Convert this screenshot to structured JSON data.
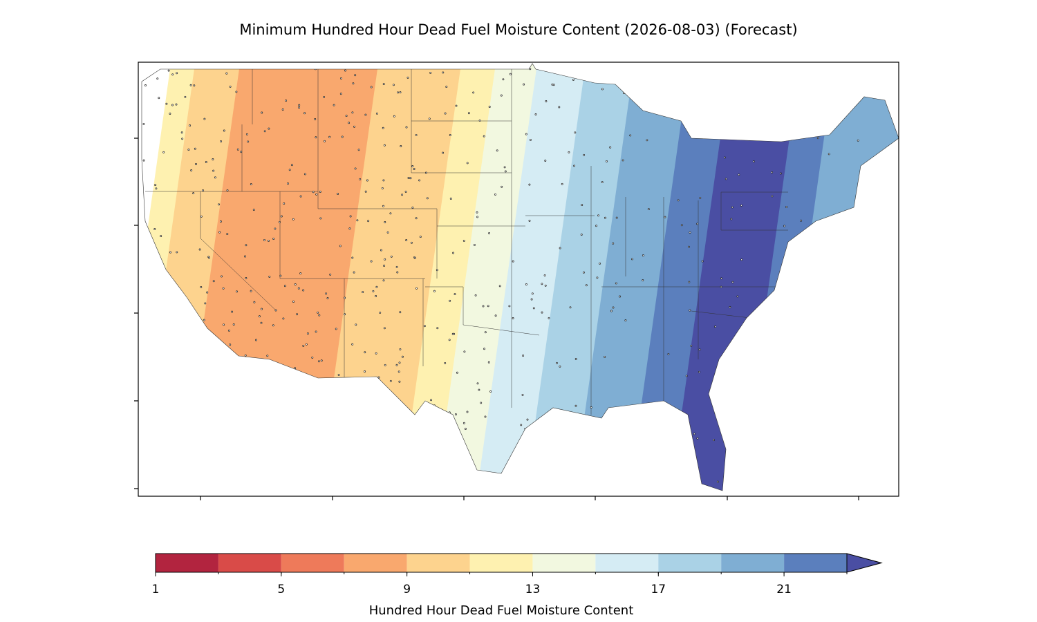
{
  "title": "Minimum Hundred Hour Dead Fuel Moisture Content (2026-08-03) (Forecast)",
  "colorbar": {
    "label": "Hundred Hour Dead Fuel Moisture Content",
    "levels": [
      1,
      3,
      5,
      7,
      9,
      11,
      13,
      15,
      17,
      19,
      21,
      23
    ],
    "colors": [
      "#b2243f",
      "#d94b48",
      "#ee7a5a",
      "#f9a86e",
      "#fdd38e",
      "#fef1b0",
      "#f2f8e0",
      "#d5ecf4",
      "#aad2e6",
      "#7faed3",
      "#5b7fbd"
    ],
    "extend_color": "#4a4ea3",
    "ticks": [
      1,
      5,
      9,
      13,
      17,
      21
    ]
  }
}
